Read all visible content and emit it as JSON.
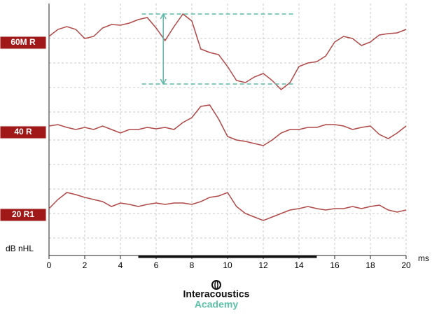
{
  "chart_data": {
    "type": "line",
    "y_label": "dB nHL",
    "x_label": "ms",
    "x": [
      0,
      0.5,
      1,
      1.5,
      2,
      2.5,
      3,
      3.5,
      4,
      4.5,
      5,
      5.5,
      6,
      6.5,
      7,
      7.5,
      8,
      8.5,
      9,
      9.5,
      10,
      10.5,
      11,
      11.5,
      12,
      12.5,
      13,
      13.5,
      14,
      14.5,
      15,
      15.5,
      16,
      16.5,
      17,
      17.5,
      18,
      18.5,
      19,
      19.5,
      20
    ],
    "series": [
      {
        "name": "60M R",
        "color": "#b04848",
        "values": [
          313,
          323,
          327,
          323,
          310,
          313,
          325,
          330,
          329,
          332,
          337,
          340,
          325,
          307,
          327,
          345,
          335,
          295,
          290,
          287,
          270,
          250,
          247,
          255,
          260,
          250,
          237,
          247,
          270,
          275,
          277,
          285,
          305,
          313,
          310,
          300,
          305,
          315,
          317,
          318,
          323
        ]
      },
      {
        "name": "40 R",
        "color": "#b04848",
        "values": [
          185,
          187,
          183,
          180,
          183,
          180,
          185,
          180,
          175,
          180,
          180,
          183,
          181,
          183,
          180,
          190,
          197,
          213,
          215,
          195,
          170,
          165,
          163,
          160,
          157,
          165,
          175,
          180,
          180,
          183,
          183,
          187,
          187,
          185,
          180,
          183,
          185,
          173,
          167,
          175,
          185
        ]
      },
      {
        "name": "20 R1",
        "color": "#b04848",
        "values": [
          67,
          80,
          90,
          87,
          83,
          80,
          77,
          70,
          75,
          73,
          70,
          73,
          75,
          73,
          75,
          75,
          73,
          77,
          83,
          85,
          90,
          70,
          60,
          55,
          50,
          55,
          60,
          65,
          67,
          70,
          67,
          65,
          67,
          67,
          70,
          67,
          70,
          72,
          65,
          62,
          65
        ]
      }
    ],
    "label_color": "#a01818",
    "xlim": [
      0,
      20
    ],
    "xticks": [
      0,
      2,
      4,
      6,
      8,
      10,
      12,
      14,
      16,
      18,
      20
    ],
    "ylim": [
      0,
      360
    ],
    "ygrid": [
      310,
      275,
      240,
      205,
      165,
      130,
      95,
      60,
      25
    ],
    "grid": true,
    "measure": {
      "x": [
        5.2,
        13.8
      ],
      "top": 345,
      "bottom": 245,
      "arrow_x": 6.4,
      "color": "#5fb8a8"
    },
    "stimulus_bar": [
      5,
      15
    ]
  },
  "logo": {
    "brand": "Interacoustics",
    "sub": "Academy"
  }
}
